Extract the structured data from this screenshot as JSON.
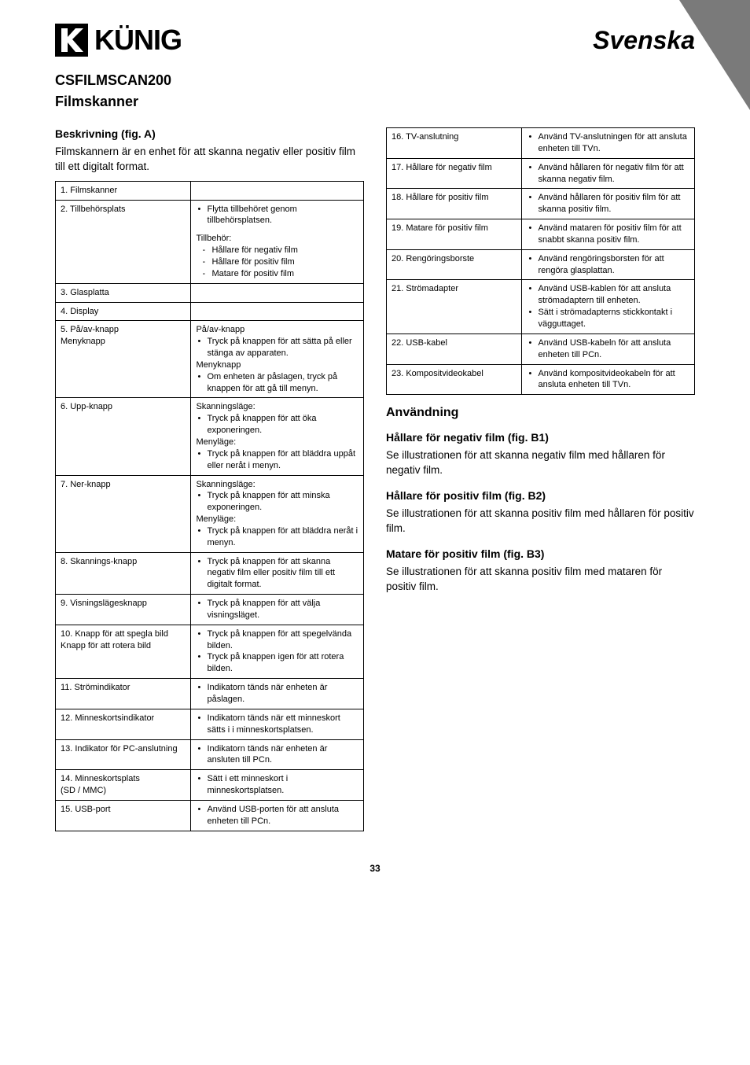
{
  "header": {
    "logo_text": "KÜNIG",
    "language": "Svenska"
  },
  "title": {
    "model": "CSFILMSCAN200",
    "product": "Filmskanner"
  },
  "description": {
    "heading": "Beskrivning (fig. A)",
    "intro": "Filmskannern är en enhet för att skanna negativ eller positiv film till ett digitalt format."
  },
  "table_left": [
    {
      "label": "1.  Filmskanner",
      "desc_type": "empty"
    },
    {
      "label": "2.  Tillbehörsplats",
      "desc_type": "accessory",
      "bullets": [
        "Flytta tillbehöret genom tillbehörsplatsen."
      ],
      "sub_label": "Tillbehör:",
      "dashes": [
        "Hållare för negativ film",
        "Hållare för positiv film",
        "Matare för positiv film"
      ]
    },
    {
      "label": "3.  Glasplatta",
      "desc_type": "empty"
    },
    {
      "label": "4.  Display",
      "desc_type": "empty"
    },
    {
      "label": "5.  På/av-knapp\n     Menyknapp",
      "desc_type": "multi",
      "groups": [
        {
          "head": "På/av-knapp",
          "bullets": [
            "Tryck på knappen för att sätta på eller stänga av apparaten."
          ]
        },
        {
          "head": "Menyknapp",
          "bullets": [
            "Om enheten är påslagen, tryck på knappen för att gå till menyn."
          ]
        }
      ]
    },
    {
      "label": "6.  Upp-knapp",
      "desc_type": "multi",
      "groups": [
        {
          "head": "Skanningsläge:",
          "bullets": [
            "Tryck på knappen för att öka exponeringen."
          ]
        },
        {
          "head": "Menyläge:",
          "bullets": [
            "Tryck på knappen för att bläddra uppåt eller neråt i menyn."
          ]
        }
      ]
    },
    {
      "label": "7.  Ner-knapp",
      "desc_type": "multi",
      "groups": [
        {
          "head": "Skanningsläge:",
          "bullets": [
            "Tryck på knappen för att minska exponeringen."
          ]
        },
        {
          "head": "Menyläge:",
          "bullets": [
            "Tryck på knappen för att bläddra neråt i menyn."
          ]
        }
      ]
    },
    {
      "label": "8.  Skannings-knapp",
      "desc_type": "bullets",
      "bullets": [
        "Tryck på knappen för att skanna negativ film eller positiv film till ett digitalt format."
      ]
    },
    {
      "label": "9.  Visningslägesknapp",
      "desc_type": "bullets",
      "bullets": [
        "Tryck på knappen för att välja visningsläget."
      ]
    },
    {
      "label": "10. Knapp för att spegla bild\n     Knapp för att rotera bild",
      "desc_type": "bullets",
      "bullets": [
        "Tryck på knappen för att spegelvända bilden.",
        "Tryck på knappen igen för att rotera bilden."
      ]
    },
    {
      "label": "11. Strömindikator",
      "desc_type": "bullets",
      "bullets": [
        "Indikatorn tänds när enheten är påslagen."
      ]
    },
    {
      "label": "12. Minneskortsindikator",
      "desc_type": "bullets",
      "bullets": [
        "Indikatorn tänds när ett minneskort sätts i i minneskortsplatsen."
      ]
    },
    {
      "label": "13. Indikator för PC-anslutning",
      "desc_type": "bullets",
      "bullets": [
        "Indikatorn tänds när enheten är ansluten till PCn."
      ]
    },
    {
      "label": "14. Minneskortsplats\n     (SD / MMC)",
      "desc_type": "bullets",
      "bullets": [
        "Sätt i ett minneskort i minneskortsplatsen."
      ]
    },
    {
      "label": "15. USB-port",
      "desc_type": "bullets",
      "bullets": [
        "Använd USB-porten för att ansluta enheten till PCn."
      ]
    }
  ],
  "table_right": [
    {
      "label": "16. TV-anslutning",
      "desc_type": "bullets",
      "bullets": [
        "Använd TV-anslutningen för att ansluta enheten till TVn."
      ]
    },
    {
      "label": "17. Hållare för negativ film",
      "desc_type": "bullets",
      "bullets": [
        "Använd hållaren för negativ film för att skanna negativ film."
      ]
    },
    {
      "label": "18. Hållare för positiv film",
      "desc_type": "bullets",
      "bullets": [
        "Använd hållaren för positiv film för att skanna positiv film."
      ]
    },
    {
      "label": "19. Matare för positiv film",
      "desc_type": "bullets",
      "bullets": [
        "Använd mataren för positiv film för att snabbt skanna positiv film."
      ]
    },
    {
      "label": "20. Rengöringsborste",
      "desc_type": "bullets",
      "bullets": [
        "Använd rengöringsborsten för att rengöra glasplattan."
      ]
    },
    {
      "label": "21. Strömadapter",
      "desc_type": "bullets",
      "bullets": [
        "Använd USB-kablen för att ansluta strömadaptern till enheten.",
        "Sätt i strömadapterns stickkontakt i vägguttaget."
      ]
    },
    {
      "label": "22. USB-kabel",
      "desc_type": "bullets",
      "bullets": [
        "Använd USB-kabeln för att ansluta enheten till PCn."
      ]
    },
    {
      "label": "23. Kompositvideokabel",
      "desc_type": "bullets",
      "bullets": [
        "Använd kompositvideo­kabeln för att ansluta enheten till TVn."
      ]
    }
  ],
  "usage": {
    "heading": "Användning",
    "sections": [
      {
        "head": "Hållare för negativ film (fig. B1)",
        "text": "Se illustrationen för att skanna negativ film med hållaren för negativ film."
      },
      {
        "head": "Hållare för positiv film (fig. B2)",
        "text": "Se illustrationen för att skanna positiv film med hållaren för positiv film."
      },
      {
        "head": "Matare för positiv film (fig. B3)",
        "text": "Se illustrationen för att skanna positiv film med mataren för positiv film."
      }
    ]
  },
  "page_number": "33"
}
